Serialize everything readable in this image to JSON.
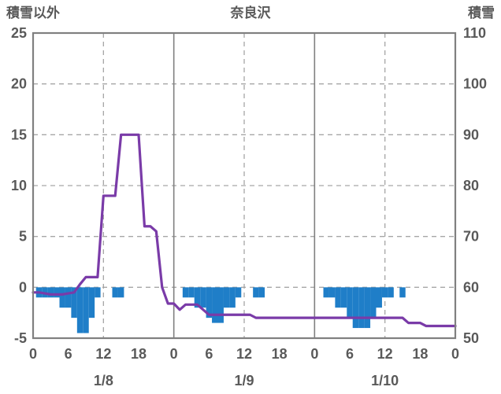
{
  "header": {
    "left_axis_title": "積雪以外",
    "chart_title": "奈良沢",
    "right_axis_title": "積雪"
  },
  "colors": {
    "line": "#7A3BA8",
    "bar": "#1F7EC8",
    "grid": "#A6A6A6",
    "border": "#808080",
    "text": "#595959",
    "background": "#FFFFFF"
  },
  "left_axis": {
    "label": "積雪以外",
    "min": -5,
    "max": 25,
    "ticks": [
      -5,
      0,
      5,
      10,
      15,
      20,
      25
    ],
    "grid_values": [
      0,
      5,
      10,
      15,
      20
    ]
  },
  "right_axis": {
    "label": "積雪",
    "min": 50,
    "max": 110,
    "ticks": [
      50,
      60,
      70,
      80,
      90,
      100,
      110
    ]
  },
  "x_axis": {
    "hours_total": 72,
    "tick_step": 6,
    "tick_labels": [
      "0",
      "6",
      "12",
      "18",
      "0",
      "6",
      "12",
      "18",
      "0",
      "6",
      "12",
      "18",
      "0"
    ],
    "day_labels": [
      "1/8",
      "1/9",
      "1/10"
    ],
    "day_label_hours": [
      12,
      36,
      60
    ],
    "solid_grid_hours": [
      24,
      48
    ],
    "dashed_grid_hours": [
      12,
      36,
      60
    ]
  },
  "chart_data": {
    "type": "combo",
    "title": "奈良沢",
    "x_unit": "hour",
    "x_start_label": "1/8 0:00",
    "grid": true,
    "legend": "none",
    "series": [
      {
        "name": "purple-line",
        "type": "line",
        "axis": "left",
        "color": "#7A3BA8",
        "values": [
          -0.5,
          -0.5,
          -0.6,
          -0.7,
          -0.7,
          -0.7,
          -0.6,
          -0.5,
          0.3,
          1,
          1,
          1,
          9,
          9,
          9,
          15,
          15,
          15,
          15,
          6,
          6,
          5.5,
          0,
          -1.6,
          -1.6,
          -2.2,
          -1.7,
          -1.7,
          -1.7,
          -2.2,
          -2.7,
          -2.7,
          -2.7,
          -2.7,
          -2.7,
          -2.7,
          -2.7,
          -2.7,
          -3,
          -3,
          -3,
          -3,
          -3,
          -3,
          -3,
          -3,
          -3,
          -3,
          -3,
          -3,
          -3,
          -3,
          -3,
          -3,
          -3,
          -3,
          -3,
          -3,
          -3,
          -3,
          -3,
          -3,
          -3,
          -3,
          -3.5,
          -3.5,
          -3.5,
          -3.8,
          -3.8,
          -3.8,
          -3.8,
          -3.8,
          -3.8
        ]
      },
      {
        "name": "blue-bars",
        "type": "bar",
        "axis": "left",
        "color": "#1F7EC8",
        "values": [
          0,
          -1,
          -1,
          -1,
          -1,
          -2,
          -2,
          -3,
          -4.5,
          -4.5,
          -3,
          -1,
          0,
          0,
          -1,
          -1,
          0,
          0,
          0,
          0,
          0,
          0,
          0,
          0,
          0,
          0,
          -1,
          -1,
          -2,
          -2,
          -3,
          -3.5,
          -3.5,
          -2,
          -2,
          -1,
          0,
          0,
          -1,
          -1,
          0,
          0,
          0,
          0,
          0,
          0,
          0,
          0,
          0,
          0,
          -1,
          -1,
          -2,
          -2,
          -3,
          -4,
          -4,
          -4,
          -3,
          -2,
          -1,
          -1,
          0,
          -1,
          0,
          0,
          0,
          0,
          0,
          0,
          0,
          0
        ]
      }
    ]
  }
}
